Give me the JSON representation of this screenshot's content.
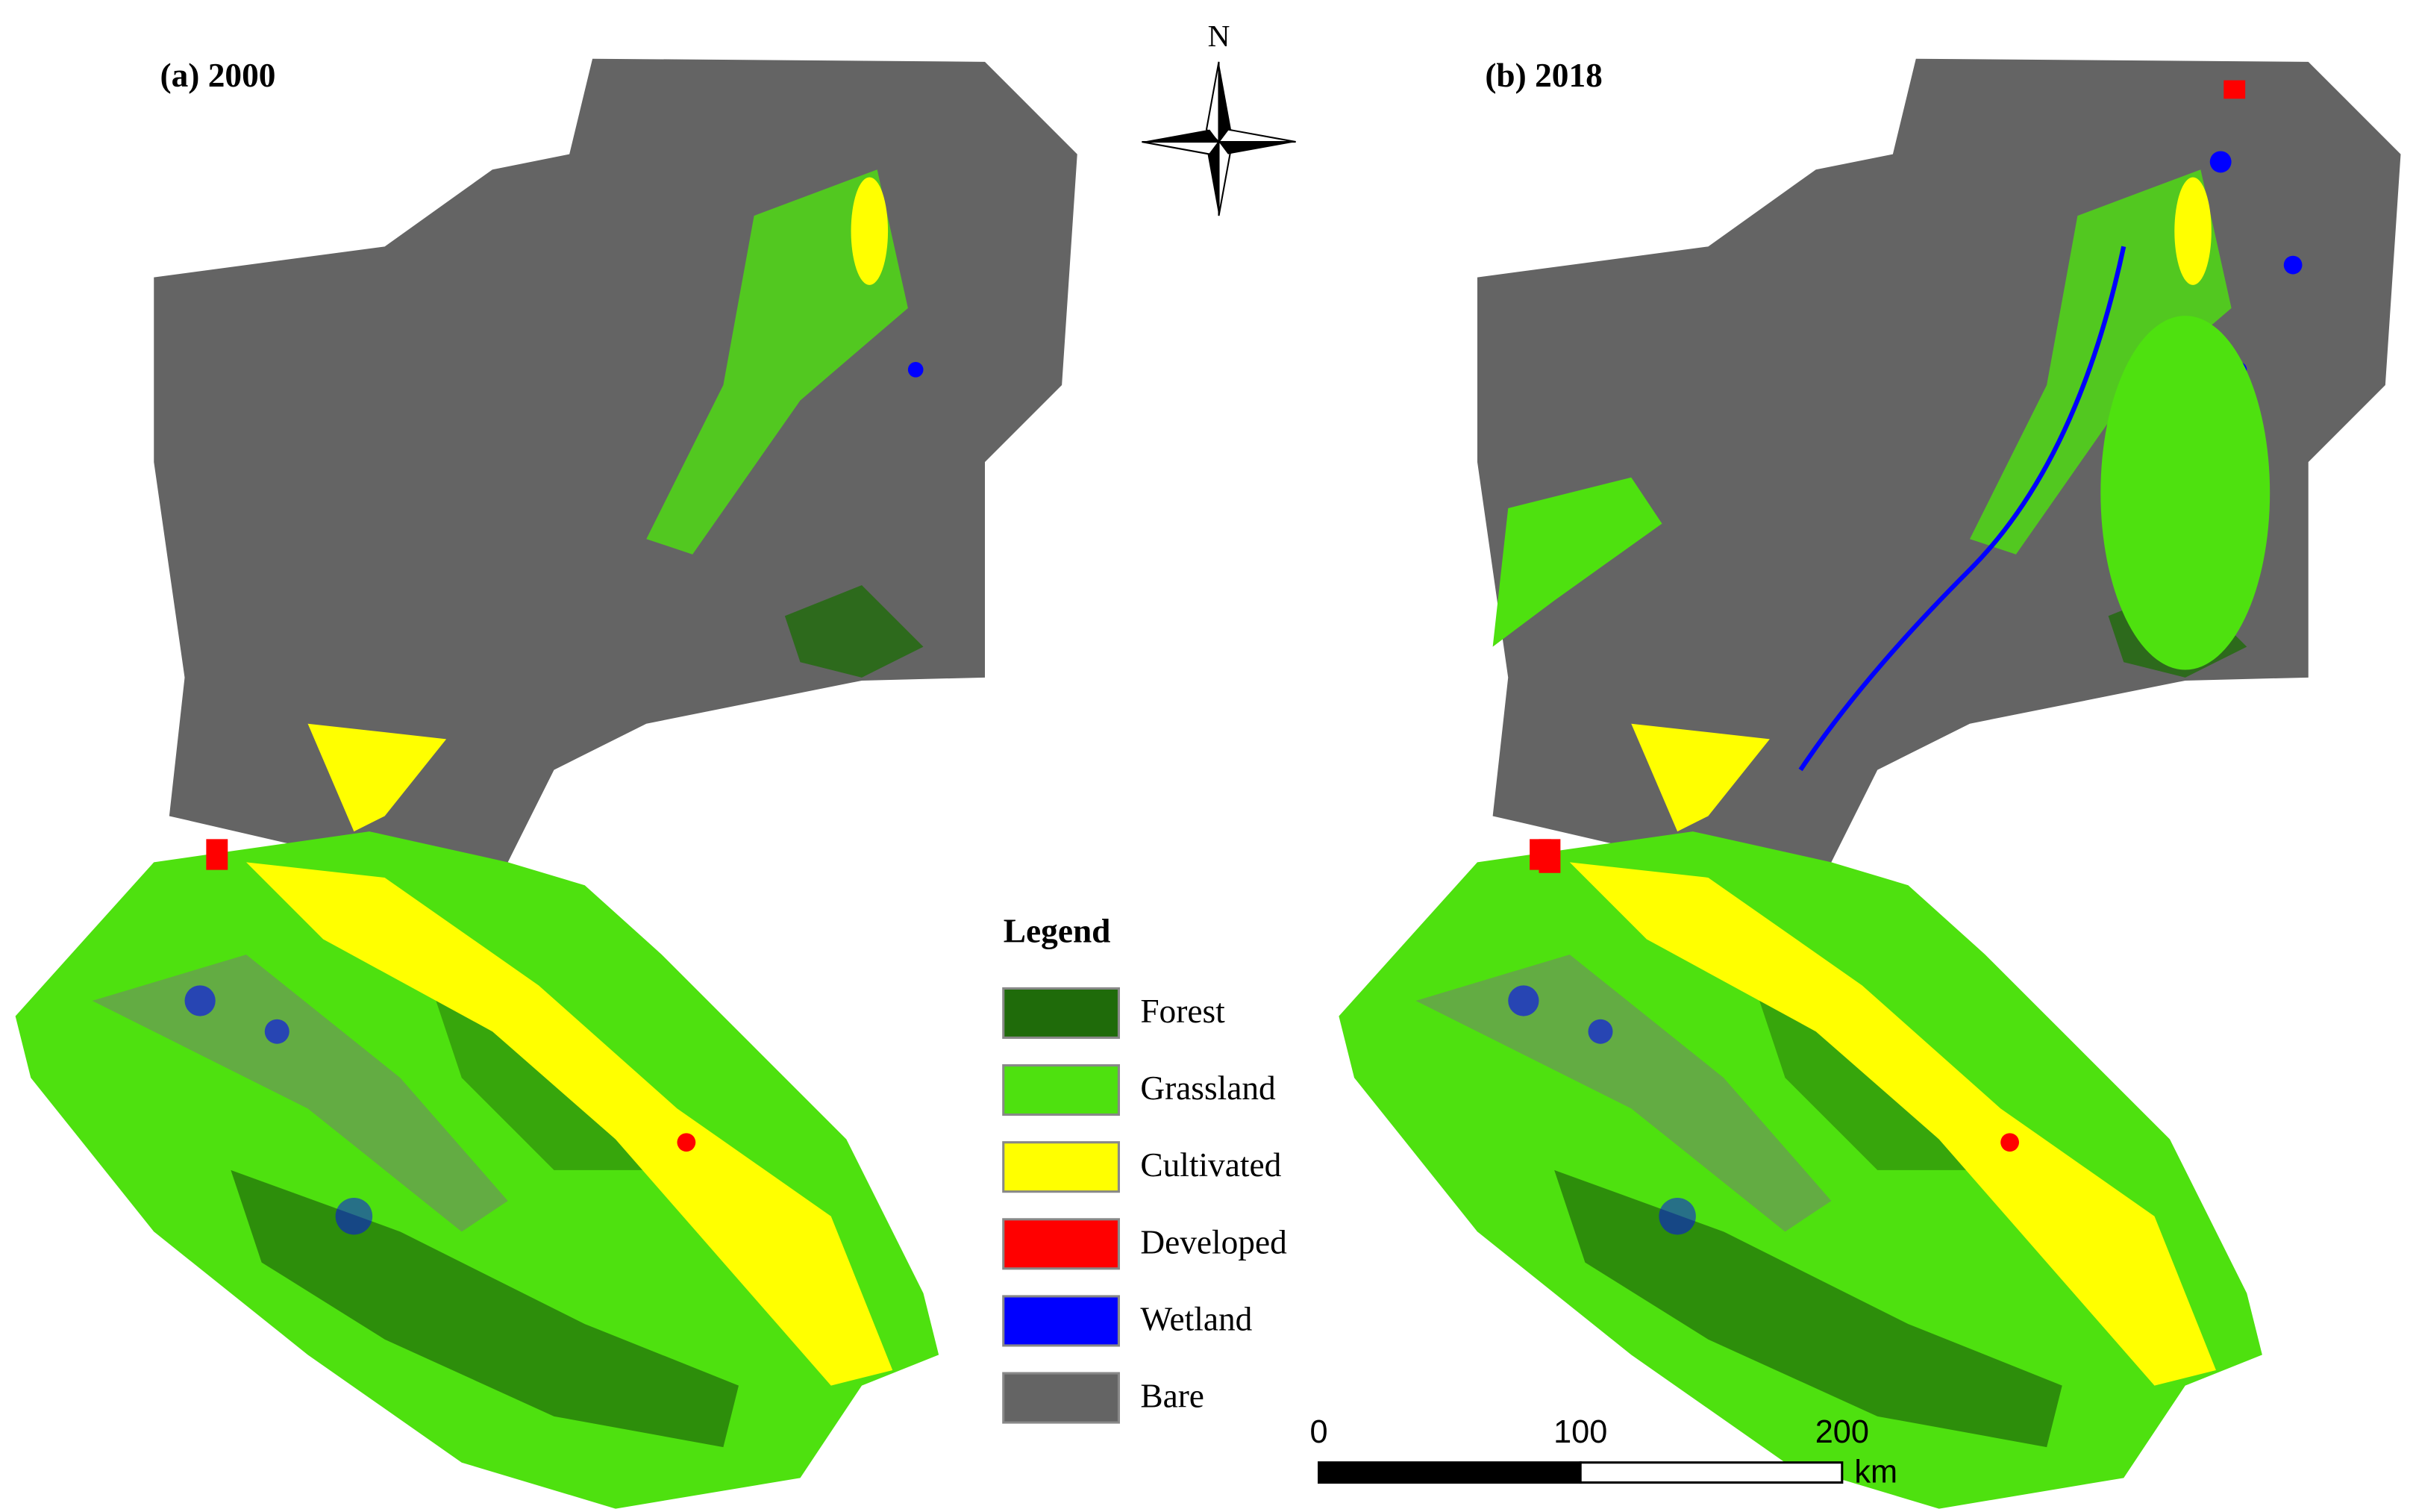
{
  "panels": [
    {
      "title": "(a) 2000"
    },
    {
      "title": "(b) 2018"
    }
  ],
  "north_arrow": {
    "label": "N"
  },
  "legend": {
    "title": "Legend",
    "items": [
      {
        "label": "Forest",
        "color": "#1f6b0a"
      },
      {
        "label": "Grassland",
        "color": "#4ee10f"
      },
      {
        "label": "Cultivated",
        "color": "#ffff00"
      },
      {
        "label": "Developed",
        "color": "#ff0000"
      },
      {
        "label": "Wetland",
        "color": "#0000ff"
      },
      {
        "label": "Bare",
        "color": "#646464"
      }
    ]
  },
  "scale_bar": {
    "ticks": [
      0,
      100,
      200
    ],
    "unit": "km"
  }
}
